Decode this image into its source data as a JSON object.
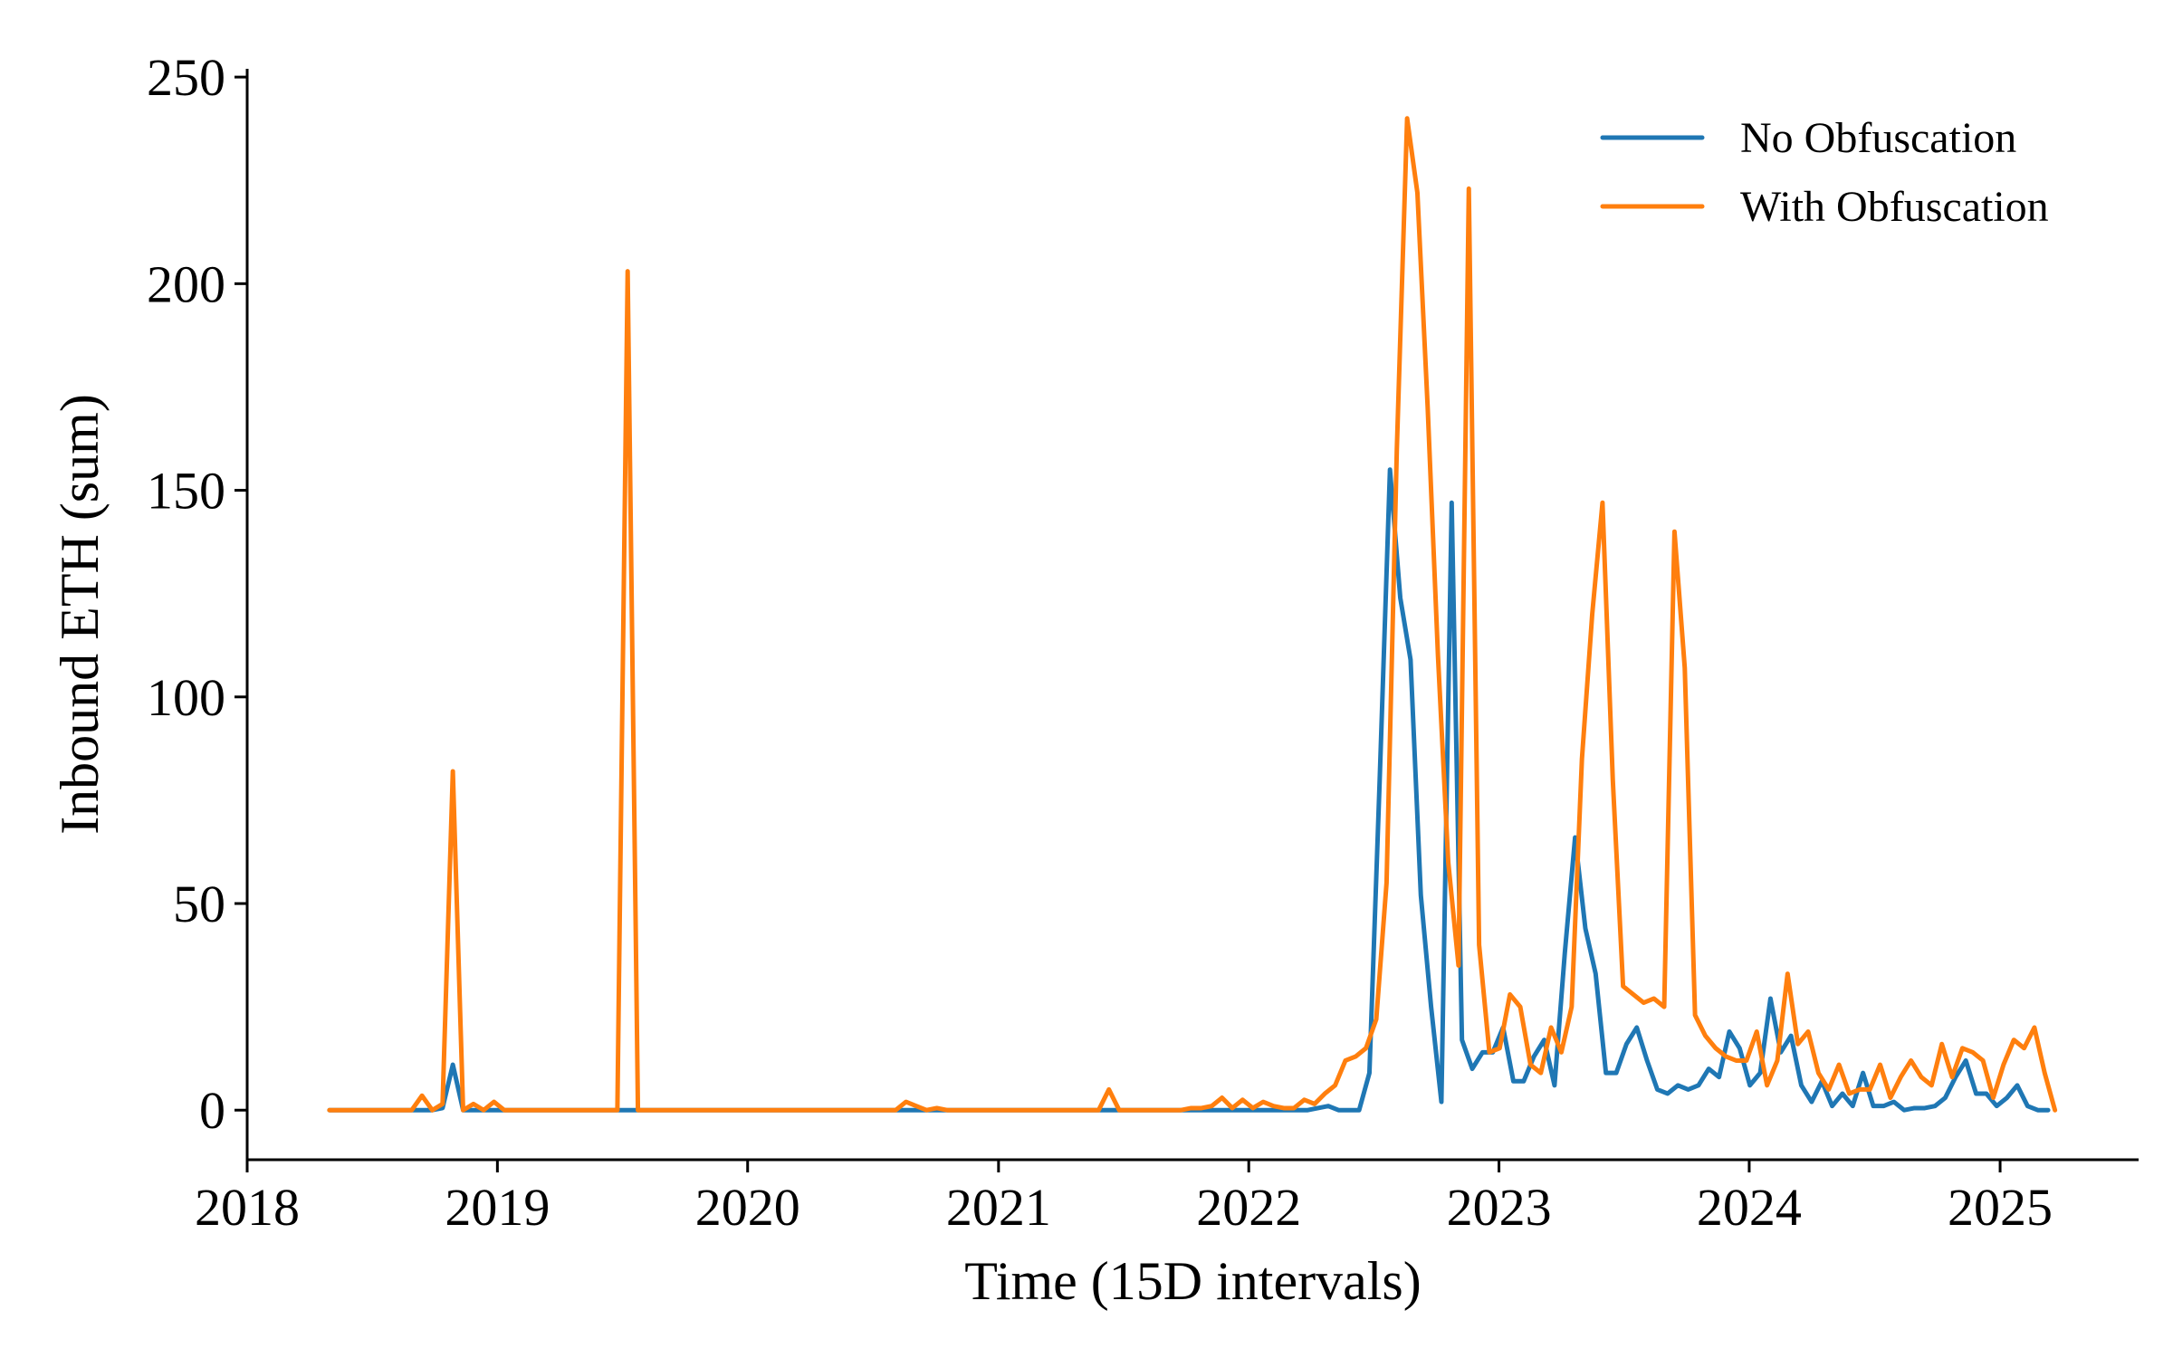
{
  "chart_data": {
    "type": "line",
    "title": "",
    "xlabel": "Time (15D intervals)",
    "ylabel": "Inbound ETH (sum)",
    "x_is_date": true,
    "xlim": [
      "2018-01-01",
      "2025-07-22"
    ],
    "ylim": [
      -12,
      252
    ],
    "xticks": [
      {
        "label": "2018",
        "value": "2018-01-01"
      },
      {
        "label": "2019",
        "value": "2019-01-01"
      },
      {
        "label": "2020",
        "value": "2020-01-01"
      },
      {
        "label": "2021",
        "value": "2021-01-01"
      },
      {
        "label": "2022",
        "value": "2022-01-01"
      },
      {
        "label": "2023",
        "value": "2023-01-01"
      },
      {
        "label": "2024",
        "value": "2024-01-01"
      },
      {
        "label": "2025",
        "value": "2025-01-01"
      }
    ],
    "yticks": [
      0,
      50,
      100,
      150,
      200,
      250
    ],
    "grid": false,
    "legend": "top-right",
    "series": [
      {
        "name": "No Obfuscation",
        "color": "#1f77b4",
        "points": [
          [
            "2018-05-01",
            0
          ],
          [
            "2018-08-29",
            0
          ],
          [
            "2018-09-28",
            0
          ],
          [
            "2018-10-13",
            0.5
          ],
          [
            "2018-10-28",
            11
          ],
          [
            "2018-11-12",
            0
          ],
          [
            "2019-01-11",
            0
          ],
          [
            "2019-07-10",
            0
          ],
          [
            "2019-08-09",
            0
          ],
          [
            "2021-10-29",
            0
          ],
          [
            "2022-03-28",
            0
          ],
          [
            "2022-04-27",
            1
          ],
          [
            "2022-05-12",
            0
          ],
          [
            "2022-06-11",
            0
          ],
          [
            "2022-06-26",
            9
          ],
          [
            "2022-07-11",
            80
          ],
          [
            "2022-07-26",
            155
          ],
          [
            "2022-08-10",
            124
          ],
          [
            "2022-08-25",
            109
          ],
          [
            "2022-09-09",
            52
          ],
          [
            "2022-09-24",
            25
          ],
          [
            "2022-10-09",
            2
          ],
          [
            "2022-10-24",
            147
          ],
          [
            "2022-11-08",
            17
          ],
          [
            "2022-11-23",
            10
          ],
          [
            "2022-12-08",
            14
          ],
          [
            "2022-12-23",
            14
          ],
          [
            "2023-01-07",
            20
          ],
          [
            "2023-01-22",
            7
          ],
          [
            "2023-02-06",
            7
          ],
          [
            "2023-02-21",
            13
          ],
          [
            "2023-03-08",
            17
          ],
          [
            "2023-03-23",
            6
          ],
          [
            "2023-04-07",
            38
          ],
          [
            "2023-04-22",
            66
          ],
          [
            "2023-05-07",
            44
          ],
          [
            "2023-05-22",
            33
          ],
          [
            "2023-06-06",
            9
          ],
          [
            "2023-06-21",
            9
          ],
          [
            "2023-07-06",
            16
          ],
          [
            "2023-07-21",
            20
          ],
          [
            "2023-08-05",
            12
          ],
          [
            "2023-08-20",
            5
          ],
          [
            "2023-09-04",
            4
          ],
          [
            "2023-09-19",
            6
          ],
          [
            "2023-10-04",
            5
          ],
          [
            "2023-10-19",
            6
          ],
          [
            "2023-11-03",
            10
          ],
          [
            "2023-11-18",
            8
          ],
          [
            "2023-12-03",
            19
          ],
          [
            "2023-12-18",
            15
          ],
          [
            "2024-01-02",
            6
          ],
          [
            "2024-01-17",
            9
          ],
          [
            "2024-02-01",
            27
          ],
          [
            "2024-02-16",
            14
          ],
          [
            "2024-03-02",
            18
          ],
          [
            "2024-03-17",
            6
          ],
          [
            "2024-04-01",
            2
          ],
          [
            "2024-04-16",
            7
          ],
          [
            "2024-05-01",
            1
          ],
          [
            "2024-05-16",
            4
          ],
          [
            "2024-05-31",
            1
          ],
          [
            "2024-06-15",
            9
          ],
          [
            "2024-06-30",
            1
          ],
          [
            "2024-07-15",
            1
          ],
          [
            "2024-07-30",
            2
          ],
          [
            "2024-08-14",
            0
          ],
          [
            "2024-08-29",
            0.5
          ],
          [
            "2024-09-13",
            0.5
          ],
          [
            "2024-09-28",
            1
          ],
          [
            "2024-10-13",
            3
          ],
          [
            "2024-10-28",
            8
          ],
          [
            "2024-11-12",
            12
          ],
          [
            "2024-11-27",
            4
          ],
          [
            "2024-12-12",
            4
          ],
          [
            "2024-12-27",
            1
          ],
          [
            "2025-01-11",
            3
          ],
          [
            "2025-01-26",
            6
          ],
          [
            "2025-02-10",
            1
          ],
          [
            "2025-02-25",
            0
          ],
          [
            "2025-03-12",
            0
          ]
        ]
      },
      {
        "name": "With Obfuscation",
        "color": "#ff7f0e",
        "points": [
          [
            "2018-05-01",
            0
          ],
          [
            "2018-08-29",
            0
          ],
          [
            "2018-09-13",
            3.5
          ],
          [
            "2018-09-28",
            0
          ],
          [
            "2018-10-13",
            1.5
          ],
          [
            "2018-10-28",
            82
          ],
          [
            "2018-11-12",
            0
          ],
          [
            "2018-11-27",
            1.5
          ],
          [
            "2018-12-12",
            0
          ],
          [
            "2018-12-27",
            2
          ],
          [
            "2019-01-11",
            0
          ],
          [
            "2019-06-25",
            0
          ],
          [
            "2019-07-10",
            203
          ],
          [
            "2019-07-25",
            0
          ],
          [
            "2020-08-04",
            0
          ],
          [
            "2020-08-19",
            2
          ],
          [
            "2020-09-03",
            1
          ],
          [
            "2020-09-18",
            0
          ],
          [
            "2020-10-03",
            0.5
          ],
          [
            "2020-10-18",
            0
          ],
          [
            "2021-05-27",
            0
          ],
          [
            "2021-06-11",
            5
          ],
          [
            "2021-06-26",
            0
          ],
          [
            "2021-09-24",
            0
          ],
          [
            "2021-10-09",
            0.5
          ],
          [
            "2021-10-24",
            0.5
          ],
          [
            "2021-11-08",
            1
          ],
          [
            "2021-11-23",
            3
          ],
          [
            "2021-12-08",
            0.5
          ],
          [
            "2021-12-23",
            2.5
          ],
          [
            "2022-01-07",
            0.5
          ],
          [
            "2022-01-22",
            2
          ],
          [
            "2022-02-06",
            1
          ],
          [
            "2022-02-21",
            0.5
          ],
          [
            "2022-03-08",
            0.5
          ],
          [
            "2022-03-23",
            2.5
          ],
          [
            "2022-04-07",
            1.5
          ],
          [
            "2022-04-22",
            4
          ],
          [
            "2022-05-07",
            6
          ],
          [
            "2022-05-22",
            12
          ],
          [
            "2022-06-06",
            13
          ],
          [
            "2022-06-21",
            15
          ],
          [
            "2022-07-06",
            22
          ],
          [
            "2022-07-21",
            55
          ],
          [
            "2022-08-05",
            160
          ],
          [
            "2022-08-20",
            240
          ],
          [
            "2022-09-04",
            222
          ],
          [
            "2022-09-19",
            170
          ],
          [
            "2022-10-04",
            110
          ],
          [
            "2022-10-19",
            60
          ],
          [
            "2022-11-03",
            35
          ],
          [
            "2022-11-18",
            223
          ],
          [
            "2022-12-03",
            40
          ],
          [
            "2022-12-18",
            14
          ],
          [
            "2023-01-02",
            15
          ],
          [
            "2023-01-17",
            28
          ],
          [
            "2023-02-01",
            25
          ],
          [
            "2023-02-16",
            11
          ],
          [
            "2023-03-03",
            9
          ],
          [
            "2023-03-18",
            20
          ],
          [
            "2023-04-02",
            14
          ],
          [
            "2023-04-17",
            25
          ],
          [
            "2023-05-02",
            85
          ],
          [
            "2023-05-17",
            120
          ],
          [
            "2023-06-01",
            147
          ],
          [
            "2023-06-16",
            80
          ],
          [
            "2023-07-01",
            30
          ],
          [
            "2023-07-16",
            28
          ],
          [
            "2023-07-31",
            26
          ],
          [
            "2023-08-15",
            27
          ],
          [
            "2023-08-30",
            25
          ],
          [
            "2023-09-14",
            140
          ],
          [
            "2023-09-29",
            107
          ],
          [
            "2023-10-14",
            23
          ],
          [
            "2023-10-29",
            18
          ],
          [
            "2023-11-13",
            15
          ],
          [
            "2023-11-28",
            13
          ],
          [
            "2023-12-13",
            12
          ],
          [
            "2023-12-28",
            12
          ],
          [
            "2024-01-12",
            19
          ],
          [
            "2024-01-27",
            6
          ],
          [
            "2024-02-11",
            12
          ],
          [
            "2024-02-26",
            33
          ],
          [
            "2024-03-12",
            16
          ],
          [
            "2024-03-27",
            19
          ],
          [
            "2024-04-11",
            9
          ],
          [
            "2024-04-26",
            5
          ],
          [
            "2024-05-11",
            11
          ],
          [
            "2024-05-26",
            4
          ],
          [
            "2024-06-10",
            5
          ],
          [
            "2024-06-25",
            5
          ],
          [
            "2024-07-10",
            11
          ],
          [
            "2024-07-25",
            3
          ],
          [
            "2024-08-09",
            8
          ],
          [
            "2024-08-24",
            12
          ],
          [
            "2024-09-08",
            8
          ],
          [
            "2024-09-23",
            6
          ],
          [
            "2024-10-08",
            16
          ],
          [
            "2024-10-23",
            8
          ],
          [
            "2024-11-07",
            15
          ],
          [
            "2024-11-22",
            14
          ],
          [
            "2024-12-07",
            12
          ],
          [
            "2024-12-22",
            3
          ],
          [
            "2025-01-06",
            11
          ],
          [
            "2025-01-21",
            17
          ],
          [
            "2025-02-05",
            15
          ],
          [
            "2025-02-20",
            20
          ],
          [
            "2025-03-07",
            9
          ],
          [
            "2025-03-22",
            0
          ]
        ]
      }
    ]
  }
}
